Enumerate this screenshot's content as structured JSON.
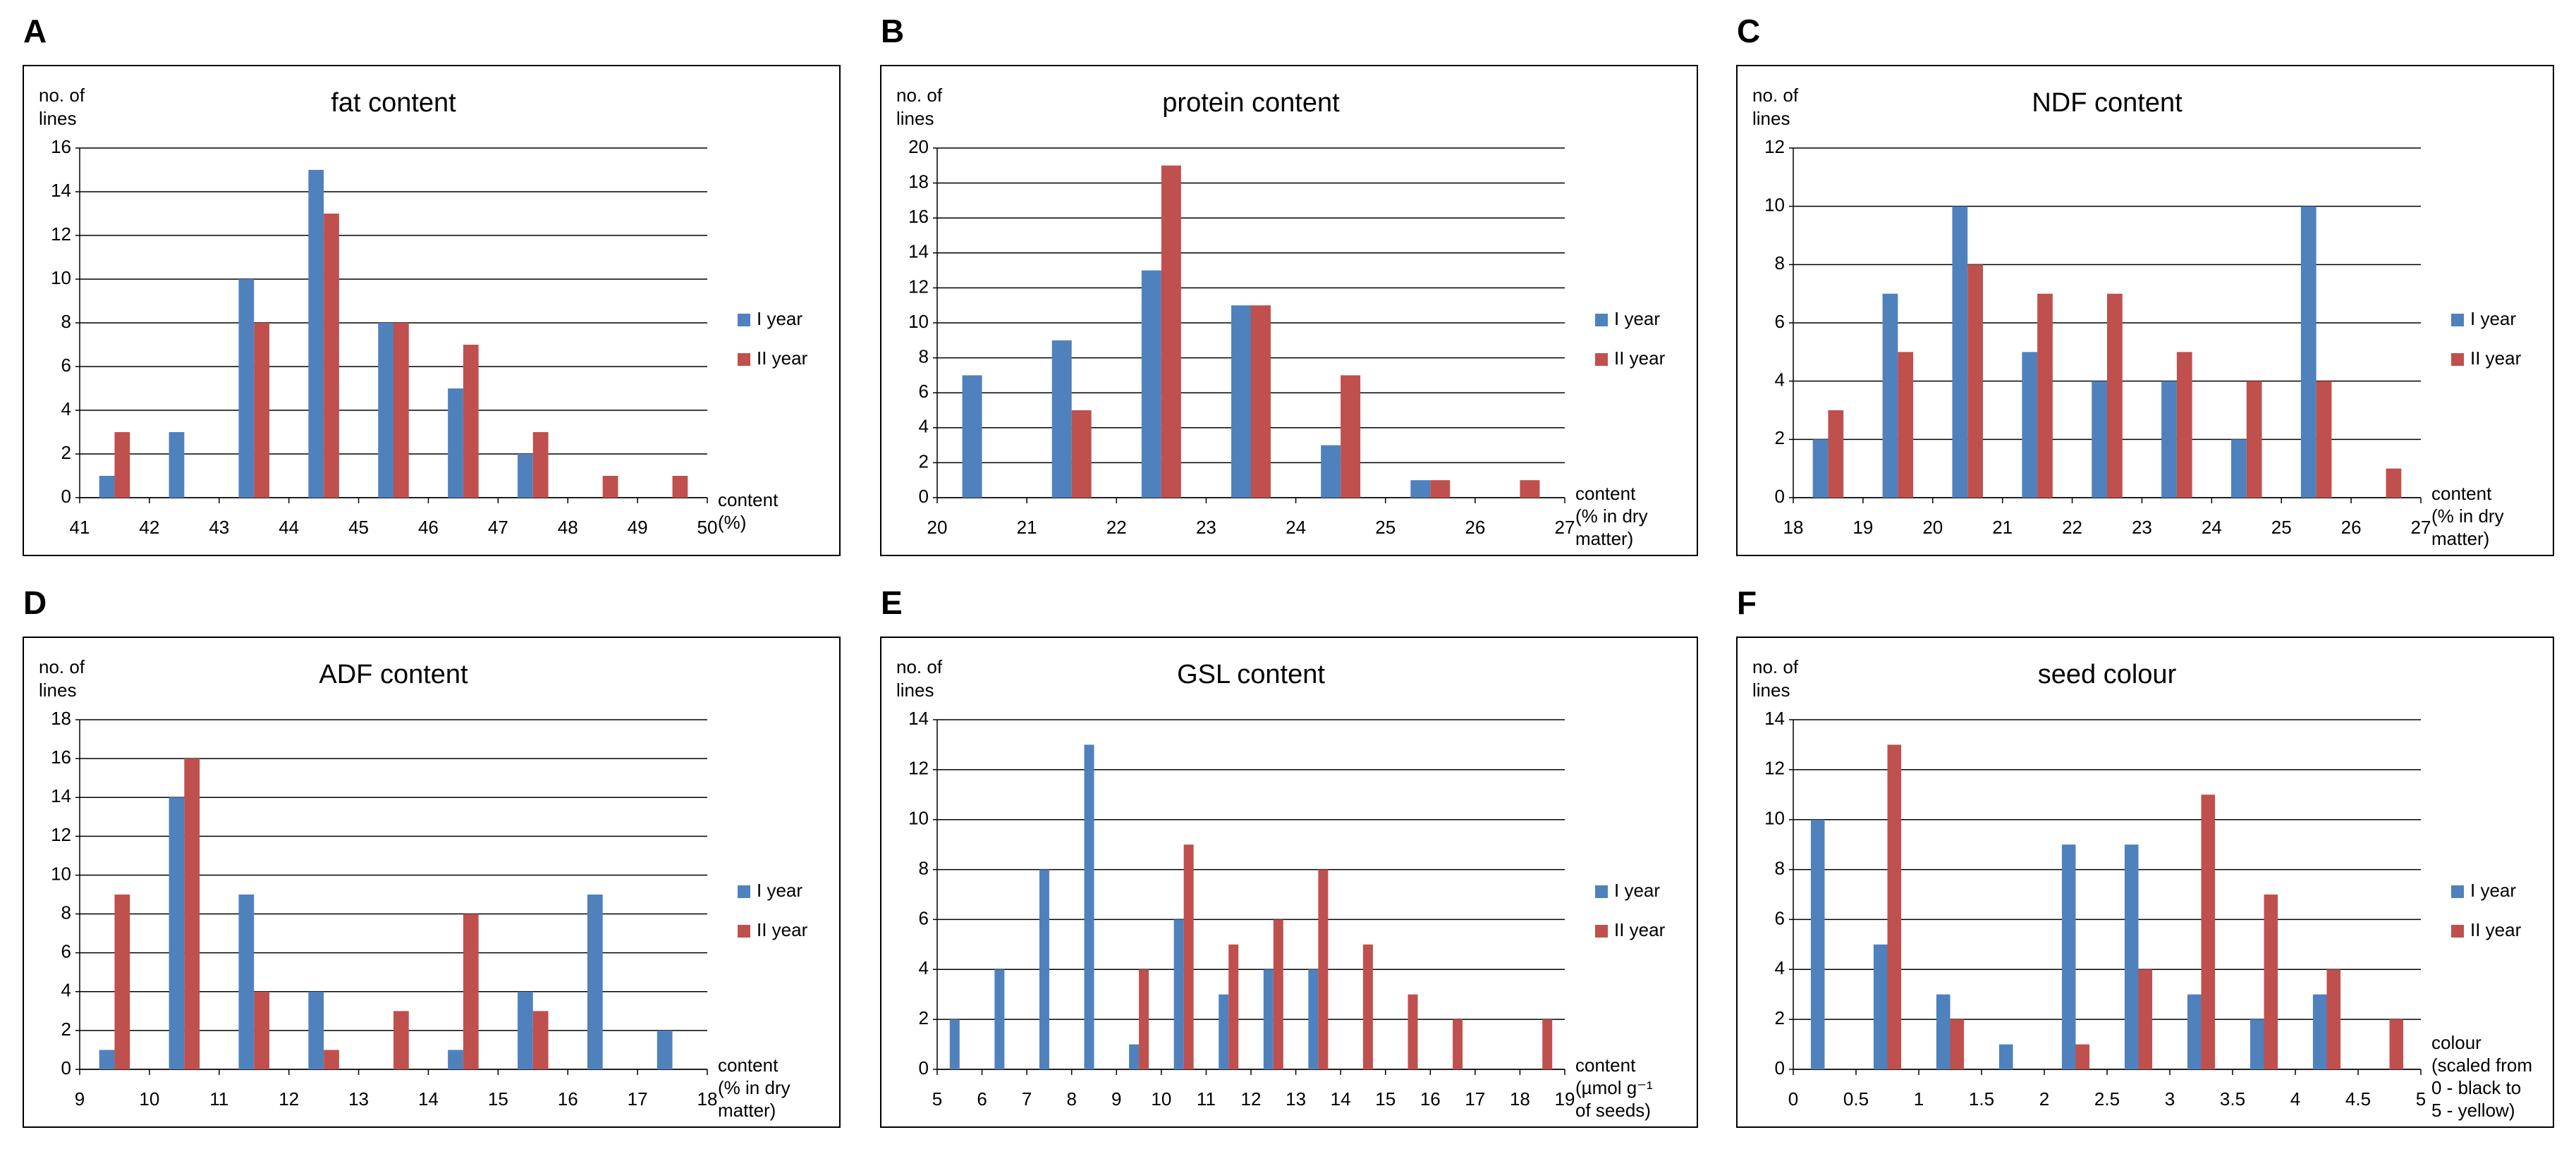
{
  "chart_data": [
    {
      "type": "histogram",
      "label": "A",
      "title": "fat content",
      "y_label": [
        "no. of",
        "lines"
      ],
      "x_label": [
        "content",
        "(%)"
      ],
      "bins": [
        41,
        42,
        43,
        44,
        45,
        46,
        47,
        48,
        49,
        50
      ],
      "xlim": [
        41,
        50
      ],
      "ylim": [
        0,
        16
      ],
      "yticks": [
        0,
        2,
        4,
        6,
        8,
        10,
        12,
        14,
        16
      ],
      "grid": true,
      "series": [
        {
          "name": "I year",
          "color": "#4f81bd",
          "values": [
            1,
            3,
            10,
            15,
            8,
            5,
            2,
            0,
            0
          ]
        },
        {
          "name": "II year",
          "color": "#c0504d",
          "values": [
            3,
            0,
            8,
            13,
            8,
            7,
            3,
            1,
            1
          ]
        }
      ]
    },
    {
      "type": "histogram",
      "label": "B",
      "title": "protein content",
      "y_label": [
        "no. of",
        "lines"
      ],
      "x_label": [
        "content",
        "(% in dry",
        "matter)"
      ],
      "bins": [
        20,
        21,
        22,
        23,
        24,
        25,
        26,
        27
      ],
      "xlim": [
        20,
        27
      ],
      "ylim": [
        0,
        20
      ],
      "yticks": [
        0,
        2,
        4,
        6,
        8,
        10,
        12,
        14,
        16,
        18,
        20
      ],
      "grid": true,
      "series": [
        {
          "name": "I year",
          "color": "#4f81bd",
          "values": [
            7,
            9,
            13,
            11,
            3,
            1,
            0
          ]
        },
        {
          "name": "II year",
          "color": "#c0504d",
          "values": [
            0,
            5,
            19,
            11,
            7,
            1,
            1
          ]
        }
      ]
    },
    {
      "type": "histogram",
      "label": "C",
      "title": "NDF content",
      "y_label": [
        "no. of",
        "lines"
      ],
      "x_label": [
        "content",
        "(% in dry",
        "matter)"
      ],
      "bins": [
        18,
        19,
        20,
        21,
        22,
        23,
        24,
        25,
        26,
        27
      ],
      "xlim": [
        18,
        27
      ],
      "ylim": [
        0,
        12
      ],
      "yticks": [
        0,
        2,
        4,
        6,
        8,
        10,
        12
      ],
      "grid": true,
      "series": [
        {
          "name": "I year",
          "color": "#4f81bd",
          "values": [
            2,
            7,
            10,
            5,
            4,
            4,
            2,
            10,
            0
          ]
        },
        {
          "name": "II year",
          "color": "#c0504d",
          "values": [
            3,
            5,
            8,
            7,
            7,
            5,
            4,
            4,
            1
          ]
        }
      ]
    },
    {
      "type": "histogram",
      "label": "D",
      "title": "ADF content",
      "y_label": [
        "no. of",
        "lines"
      ],
      "x_label": [
        "content",
        "(% in dry",
        "matter)"
      ],
      "bins": [
        9,
        10,
        11,
        12,
        13,
        14,
        15,
        16,
        17,
        18
      ],
      "xlim": [
        9,
        18
      ],
      "ylim": [
        0,
        18
      ],
      "yticks": [
        0,
        2,
        4,
        6,
        8,
        10,
        12,
        14,
        16,
        18
      ],
      "grid": true,
      "series": [
        {
          "name": "I year",
          "color": "#4f81bd",
          "values": [
            1,
            14,
            9,
            4,
            0,
            1,
            4,
            9,
            2
          ]
        },
        {
          "name": "II year",
          "color": "#c0504d",
          "values": [
            9,
            16,
            4,
            1,
            3,
            8,
            3,
            0,
            0
          ]
        }
      ]
    },
    {
      "type": "histogram",
      "label": "E",
      "title": "GSL content",
      "y_label": [
        "no. of",
        "lines"
      ],
      "x_label": [
        "content",
        "(µmol g⁻¹",
        "of seeds)"
      ],
      "bins": [
        5,
        6,
        7,
        8,
        9,
        10,
        11,
        12,
        13,
        14,
        15,
        16,
        17,
        18,
        19
      ],
      "xlim": [
        5,
        19
      ],
      "ylim": [
        0,
        14
      ],
      "yticks": [
        0,
        2,
        4,
        6,
        8,
        10,
        12,
        14
      ],
      "grid": true,
      "series": [
        {
          "name": "I year",
          "color": "#4f81bd",
          "values": [
            2,
            4,
            8,
            13,
            1,
            6,
            3,
            4,
            4,
            0,
            0,
            0,
            0,
            0
          ]
        },
        {
          "name": "II year",
          "color": "#c0504d",
          "values": [
            0,
            0,
            0,
            0,
            4,
            9,
            5,
            6,
            8,
            5,
            3,
            2,
            0,
            2
          ]
        }
      ]
    },
    {
      "type": "histogram",
      "label": "F",
      "title": "seed colour",
      "y_label": [
        "no. of",
        "lines"
      ],
      "x_label": [
        "colour",
        "(scaled from",
        "0 - black to",
        "5 - yellow)"
      ],
      "bins": [
        0,
        0.5,
        1,
        1.5,
        2,
        2.5,
        3,
        3.5,
        4,
        4.5,
        5
      ],
      "xlim": [
        0,
        5
      ],
      "ylim": [
        0,
        14
      ],
      "yticks": [
        0,
        2,
        4,
        6,
        8,
        10,
        12,
        14
      ],
      "grid": true,
      "series": [
        {
          "name": "I year",
          "color": "#4f81bd",
          "values": [
            10,
            5,
            3,
            1,
            9,
            9,
            3,
            2,
            3,
            0
          ]
        },
        {
          "name": "II year",
          "color": "#c0504d",
          "values": [
            0,
            13,
            2,
            0,
            1,
            4,
            11,
            7,
            4,
            2
          ]
        }
      ]
    }
  ]
}
